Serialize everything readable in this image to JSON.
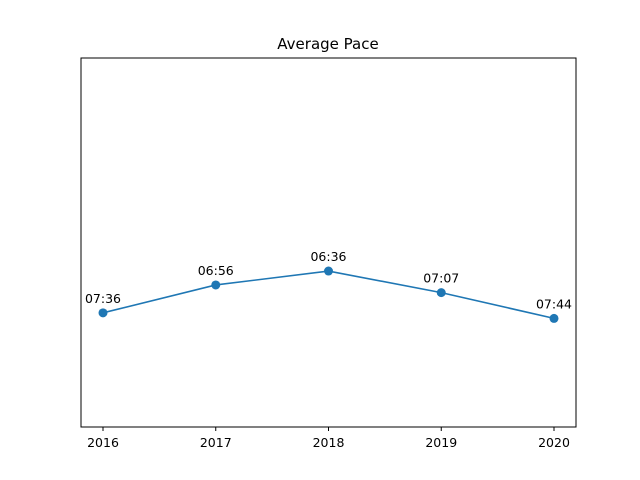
{
  "chart_data": {
    "type": "line",
    "title": "Average Pace",
    "xlabel": "",
    "ylabel": "",
    "categories": [
      "2016",
      "2017",
      "2018",
      "2019",
      "2020"
    ],
    "y_unit": "seconds",
    "series": [
      {
        "values": [
          456,
          416,
          396,
          427,
          464
        ],
        "labels": [
          "07:36",
          "06:56",
          "06:36",
          "07:07",
          "07:44"
        ],
        "color": "#1f77b4"
      }
    ],
    "ylim_inverted": [
      620,
      90
    ],
    "y_ticks_visible": false,
    "grid": false,
    "legend": "none"
  }
}
